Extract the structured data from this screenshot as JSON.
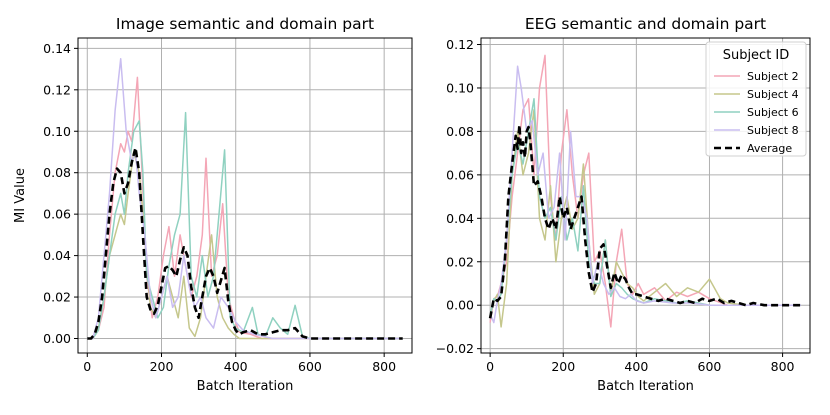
{
  "chart_data": [
    {
      "type": "line",
      "title": "Image semantic and domain part",
      "xlabel": "Batch Iteration",
      "ylabel": "MI Value",
      "xlim": [
        -25,
        875
      ],
      "ylim": [
        -0.007,
        0.145
      ],
      "x_ticks": [
        0,
        200,
        400,
        600,
        800
      ],
      "x_tick_labels": [
        "0",
        "200",
        "400",
        "600",
        "800"
      ],
      "y_ticks": [
        0,
        0.02,
        0.04,
        0.06,
        0.08,
        0.1,
        0.12,
        0.14
      ],
      "y_tick_labels": [
        "0.00",
        "0.02",
        "0.04",
        "0.06",
        "0.08",
        "0.10",
        "0.12",
        "0.14"
      ],
      "grid": true,
      "series": [
        {
          "name": "Subject 2",
          "color": "#f4a6b6",
          "x": [
            0,
            15,
            30,
            45,
            60,
            75,
            90,
            100,
            110,
            120,
            135,
            145,
            160,
            175,
            190,
            205,
            220,
            235,
            250,
            265,
            280,
            295,
            310,
            320,
            335,
            350,
            365,
            380,
            395,
            410,
            440,
            470,
            500,
            530,
            560,
            590,
            620,
            700,
            850
          ],
          "y": [
            0,
            0,
            0.004,
            0.015,
            0.05,
            0.08,
            0.094,
            0.09,
            0.1,
            0.095,
            0.126,
            0.09,
            0.03,
            0.01,
            0.02,
            0.04,
            0.054,
            0.03,
            0.05,
            0.035,
            0.02,
            0.03,
            0.05,
            0.087,
            0.03,
            0.04,
            0.065,
            0.02,
            0.01,
            0.003,
            0.002,
            0,
            0,
            0,
            0,
            0,
            0,
            0,
            0
          ]
        },
        {
          "name": "Subject 4",
          "color": "#c5c78c",
          "x": [
            0,
            15,
            30,
            45,
            60,
            75,
            90,
            100,
            110,
            125,
            140,
            155,
            170,
            185,
            200,
            215,
            230,
            245,
            260,
            275,
            290,
            305,
            320,
            335,
            350,
            365,
            380,
            395,
            410,
            440,
            470,
            500,
            530,
            560,
            590,
            620,
            700,
            850
          ],
          "y": [
            0,
            0,
            0.005,
            0.02,
            0.04,
            0.05,
            0.06,
            0.055,
            0.07,
            0.09,
            0.08,
            0.05,
            0.015,
            0.01,
            0.02,
            0.03,
            0.02,
            0.01,
            0.03,
            0.005,
            0.001,
            0.01,
            0.03,
            0.05,
            0.02,
            0.01,
            0.005,
            0.002,
            0,
            0,
            0,
            0,
            0,
            0,
            0,
            0,
            0,
            0
          ]
        },
        {
          "name": "Subject 6",
          "color": "#8fd1c0",
          "x": [
            0,
            15,
            30,
            45,
            60,
            75,
            90,
            100,
            110,
            125,
            140,
            150,
            160,
            175,
            190,
            205,
            220,
            235,
            250,
            265,
            280,
            295,
            310,
            325,
            340,
            355,
            370,
            385,
            400,
            420,
            445,
            460,
            480,
            500,
            520,
            540,
            560,
            580,
            600,
            700,
            850
          ],
          "y": [
            0,
            0,
            0.004,
            0.02,
            0.04,
            0.06,
            0.07,
            0.06,
            0.08,
            0.1,
            0.105,
            0.08,
            0.03,
            0.02,
            0.01,
            0.015,
            0.035,
            0.05,
            0.06,
            0.109,
            0.03,
            0.02,
            0.04,
            0.02,
            0.03,
            0.06,
            0.091,
            0.01,
            0.005,
            0.003,
            0.015,
            0.002,
            0.001,
            0.01,
            0.005,
            0.002,
            0.016,
            0.001,
            0,
            0,
            0
          ]
        },
        {
          "name": "Subject 8",
          "color": "#c9bdf0",
          "x": [
            0,
            15,
            30,
            45,
            60,
            75,
            90,
            105,
            120,
            130,
            140,
            155,
            170,
            185,
            200,
            215,
            230,
            245,
            260,
            275,
            290,
            305,
            320,
            340,
            360,
            380,
            400,
            420,
            450,
            500,
            550,
            600,
            700,
            850
          ],
          "y": [
            0,
            0,
            0.01,
            0.04,
            0.07,
            0.11,
            0.135,
            0.1,
            0.085,
            0.09,
            0.07,
            0.05,
            0.02,
            0.01,
            0.02,
            0.03,
            0.015,
            0.02,
            0.04,
            0.025,
            0.015,
            0.02,
            0.01,
            0.005,
            0.02,
            0.015,
            0.008,
            0.004,
            0.002,
            0,
            0,
            0,
            0,
            0
          ]
        },
        {
          "name": "Average",
          "color": "#000000",
          "dashed": true,
          "x": [
            0,
            10,
            20,
            30,
            40,
            50,
            60,
            70,
            80,
            90,
            100,
            110,
            120,
            130,
            140,
            150,
            160,
            170,
            180,
            190,
            200,
            210,
            220,
            230,
            240,
            250,
            260,
            270,
            280,
            290,
            300,
            310,
            320,
            330,
            340,
            350,
            360,
            370,
            380,
            390,
            400,
            410,
            420,
            440,
            460,
            480,
            500,
            520,
            540,
            560,
            570,
            580,
            600,
            650,
            700,
            750,
            800,
            850
          ],
          "y": [
            0,
            0,
            0.002,
            0.008,
            0.02,
            0.04,
            0.06,
            0.075,
            0.082,
            0.08,
            0.07,
            0.075,
            0.085,
            0.092,
            0.08,
            0.05,
            0.02,
            0.014,
            0.012,
            0.016,
            0.025,
            0.034,
            0.035,
            0.033,
            0.03,
            0.038,
            0.044,
            0.04,
            0.025,
            0.015,
            0.01,
            0.02,
            0.03,
            0.034,
            0.03,
            0.022,
            0.028,
            0.034,
            0.018,
            0.008,
            0.004,
            0.002,
            0.003,
            0.004,
            0.002,
            0.002,
            0.003,
            0.004,
            0.004,
            0.005,
            0.003,
            0.001,
            0,
            0,
            0,
            0,
            0,
            0
          ]
        }
      ]
    },
    {
      "type": "line",
      "title": "EEG semantic and domain part",
      "xlabel": "Batch Iteration",
      "ylabel": "",
      "xlim": [
        -25,
        875
      ],
      "ylim": [
        -0.022,
        0.123
      ],
      "x_ticks": [
        0,
        200,
        400,
        600,
        800
      ],
      "x_tick_labels": [
        "0",
        "200",
        "400",
        "600",
        "800"
      ],
      "y_ticks": [
        -0.02,
        0,
        0.02,
        0.04,
        0.06,
        0.08,
        0.1,
        0.12
      ],
      "y_tick_labels": [
        "−0.02",
        "0.00",
        "0.02",
        "0.04",
        "0.06",
        "0.08",
        "0.10",
        "0.12"
      ],
      "grid": true,
      "legend": {
        "title": "Subject ID",
        "position": "top-right"
      },
      "series": [
        {
          "name": "Subject 2",
          "color": "#f4a6b6",
          "x": [
            0,
            10,
            20,
            30,
            45,
            60,
            75,
            90,
            105,
            120,
            135,
            150,
            165,
            180,
            195,
            210,
            225,
            240,
            255,
            270,
            285,
            300,
            315,
            330,
            345,
            360,
            375,
            390,
            405,
            420,
            450,
            480,
            510,
            540,
            570,
            600,
            650,
            700,
            750,
            800,
            850
          ],
          "y": [
            -0.008,
            0.003,
            0.004,
            0.01,
            0.02,
            0.05,
            0.07,
            0.09,
            0.095,
            0.06,
            0.1,
            0.115,
            0.05,
            0.03,
            0.07,
            0.09,
            0.06,
            0.04,
            0.06,
            0.07,
            0.02,
            0.025,
            0.01,
            -0.01,
            0.02,
            0.035,
            0.01,
            0.005,
            0.01,
            0.005,
            0.008,
            0.002,
            0.006,
            0.004,
            0.006,
            0.003,
            0,
            0,
            0,
            0,
            0
          ]
        },
        {
          "name": "Subject 4",
          "color": "#c5c78c",
          "x": [
            0,
            10,
            20,
            30,
            45,
            60,
            75,
            90,
            105,
            120,
            135,
            150,
            165,
            180,
            195,
            210,
            225,
            240,
            255,
            270,
            285,
            300,
            315,
            330,
            345,
            360,
            375,
            390,
            405,
            420,
            450,
            480,
            510,
            540,
            570,
            600,
            630,
            650,
            700,
            750,
            800,
            850
          ],
          "y": [
            -0.005,
            0.002,
            0.005,
            -0.01,
            0.01,
            0.06,
            0.08,
            0.06,
            0.07,
            0.09,
            0.04,
            0.03,
            0.055,
            0.02,
            0.04,
            0.05,
            0.035,
            0.04,
            0.065,
            0.03,
            0.005,
            0.01,
            0.03,
            0.005,
            0.02,
            0.015,
            0.01,
            0.008,
            0.004,
            0.002,
            0.006,
            0.01,
            0.004,
            0.008,
            0.006,
            0.012,
            0.003,
            0.001,
            0,
            0,
            0,
            0
          ]
        },
        {
          "name": "Subject 6",
          "color": "#8fd1c0",
          "x": [
            0,
            10,
            20,
            30,
            45,
            60,
            75,
            90,
            105,
            120,
            135,
            150,
            165,
            180,
            195,
            210,
            225,
            240,
            255,
            270,
            285,
            300,
            315,
            330,
            345,
            360,
            375,
            390,
            405,
            420,
            450,
            480,
            510,
            540,
            570,
            600,
            650,
            700,
            850
          ],
          "y": [
            -0.005,
            0.003,
            0.002,
            0.005,
            0.03,
            0.06,
            0.075,
            0.065,
            0.08,
            0.095,
            0.05,
            0.04,
            0.045,
            0.03,
            0.05,
            0.03,
            0.04,
            0.025,
            0.055,
            0.02,
            0.01,
            0.01,
            0.03,
            0.004,
            0.01,
            0.008,
            0.005,
            0.003,
            0.002,
            0.001,
            0.003,
            0.002,
            0.001,
            0.002,
            0.001,
            0,
            0,
            0,
            0
          ]
        },
        {
          "name": "Subject 8",
          "color": "#c9bdf0",
          "x": [
            0,
            10,
            20,
            30,
            45,
            60,
            75,
            85,
            100,
            115,
            130,
            145,
            160,
            175,
            190,
            205,
            220,
            235,
            250,
            265,
            280,
            295,
            310,
            325,
            340,
            355,
            370,
            385,
            400,
            420,
            450,
            500,
            550,
            600,
            650,
            700,
            850
          ],
          "y": [
            -0.004,
            -0.008,
            0.002,
            0.01,
            0.03,
            0.07,
            0.11,
            0.1,
            0.08,
            0.085,
            0.06,
            0.07,
            0.04,
            0.045,
            0.07,
            0.03,
            0.08,
            0.05,
            0.05,
            0.04,
            0.01,
            0.02,
            0.01,
            0.005,
            0.008,
            0.004,
            0.003,
            0.005,
            0.002,
            0.001,
            0.002,
            0.001,
            0.001,
            0,
            0,
            0,
            0
          ]
        },
        {
          "name": "Average",
          "color": "#000000",
          "dashed": true,
          "x": [
            0,
            10,
            20,
            30,
            40,
            50,
            60,
            70,
            75,
            80,
            85,
            90,
            95,
            100,
            105,
            110,
            120,
            130,
            140,
            150,
            160,
            170,
            180,
            190,
            200,
            210,
            220,
            230,
            240,
            250,
            260,
            270,
            280,
            290,
            300,
            310,
            320,
            330,
            340,
            350,
            360,
            370,
            380,
            390,
            400,
            420,
            440,
            460,
            480,
            500,
            520,
            540,
            560,
            580,
            600,
            620,
            640,
            660,
            680,
            700,
            720,
            750,
            800,
            850
          ],
          "y": [
            -0.006,
            0.003,
            0.002,
            0.004,
            0.02,
            0.05,
            0.065,
            0.078,
            0.072,
            0.083,
            0.07,
            0.075,
            0.068,
            0.08,
            0.082,
            0.075,
            0.055,
            0.057,
            0.05,
            0.04,
            0.035,
            0.04,
            0.035,
            0.05,
            0.04,
            0.045,
            0.035,
            0.04,
            0.045,
            0.05,
            0.03,
            0.015,
            0.006,
            0.01,
            0.026,
            0.028,
            0.018,
            0.008,
            0.015,
            0.01,
            0.014,
            0.012,
            0.008,
            0.005,
            0.005,
            0.004,
            0.003,
            0.002,
            0.003,
            0.002,
            0.001,
            0.002,
            0.001,
            0.003,
            0.002,
            0.003,
            0.001,
            0.002,
            0.001,
            0,
            0.001,
            0,
            0,
            0
          ]
        }
      ]
    }
  ]
}
